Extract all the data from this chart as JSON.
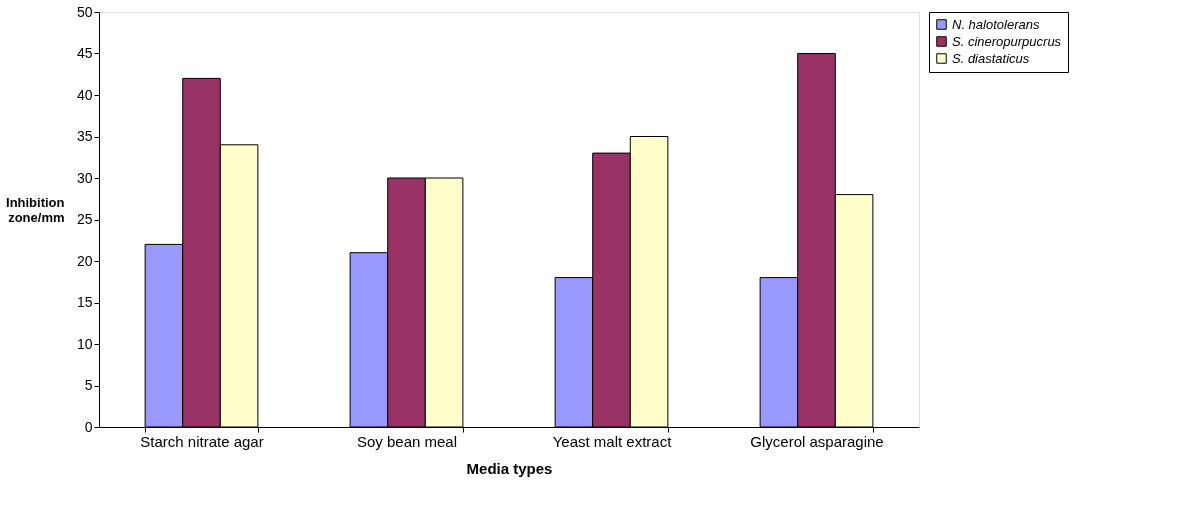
{
  "chart_data": {
    "type": "bar",
    "xlabel": "Media types",
    "ylabel": "Inhibition zone/mm",
    "categories": [
      "Starch nitrate agar",
      "Soy bean meal",
      "Yeast malt extract",
      "Glycerol asparagine"
    ],
    "series": [
      {
        "name": "N. halotolerans",
        "color": "#9999ff",
        "values": [
          22,
          21,
          18,
          18
        ]
      },
      {
        "name": "S. cineropurpucrus",
        "color": "#993366",
        "values": [
          42,
          30,
          33,
          45
        ]
      },
      {
        "name": "S. diastaticus",
        "color": "#ffffcc",
        "values": [
          34,
          30,
          35,
          28
        ]
      }
    ],
    "ylim": [
      0,
      50
    ],
    "yticks": [
      0,
      5,
      10,
      15,
      20,
      25,
      30,
      35,
      40,
      45,
      50
    ],
    "grid": false,
    "legend": "right"
  }
}
